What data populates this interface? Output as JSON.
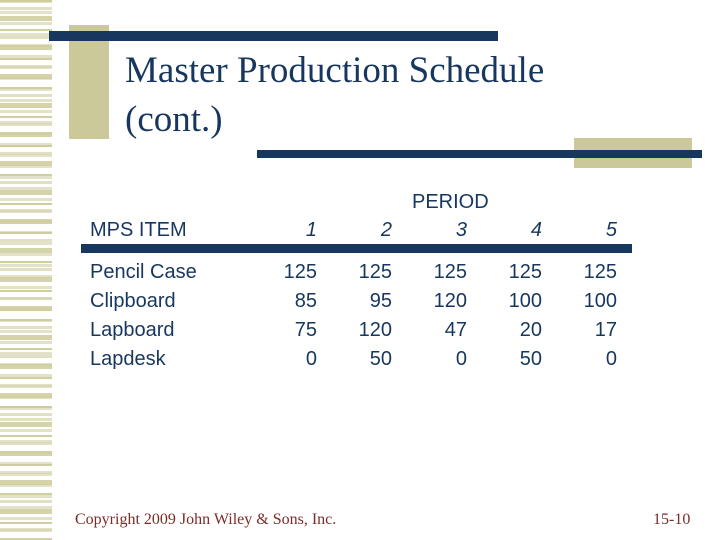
{
  "slide": {
    "title": {
      "line1": "Master Production Schedule",
      "line2": "(cont.)"
    },
    "table": {
      "period_header": "PERIOD",
      "item_header": "MPS ITEM",
      "period_columns": [
        "1",
        "2",
        "3",
        "4",
        "5"
      ],
      "rows": [
        {
          "item": "Pencil Case",
          "values": [
            "125",
            "125",
            "125",
            "125",
            "125"
          ]
        },
        {
          "item": "Clipboard",
          "values": [
            "85",
            "95",
            "120",
            "100",
            "100"
          ]
        },
        {
          "item": "Lapboard",
          "values": [
            "75",
            "120",
            "47",
            "20",
            "17"
          ]
        },
        {
          "item": "Lapdesk",
          "values": [
            "0",
            "50",
            "0",
            "50",
            "0"
          ]
        }
      ]
    },
    "footer": {
      "copyright": "Copyright 2009 John Wiley & Sons, Inc.",
      "page_number": "15-10"
    },
    "colors": {
      "navy": "#17375e",
      "tan": "#cbc89a",
      "maroon": "#7b2b28"
    }
  }
}
